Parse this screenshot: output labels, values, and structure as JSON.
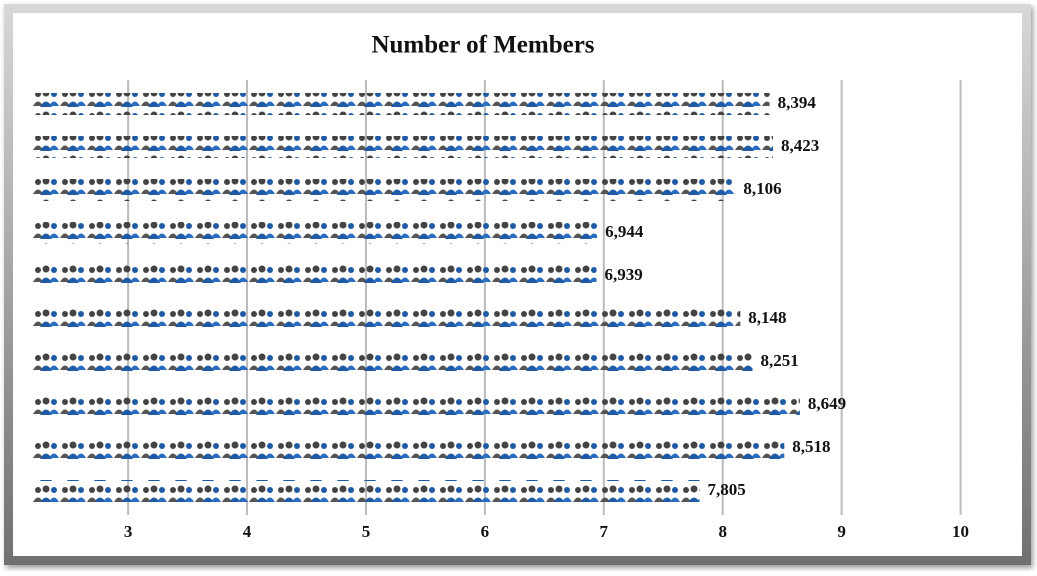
{
  "chart_data": {
    "type": "pictograph-bar",
    "title": "Number of Members",
    "values": [
      8.394,
      8.423,
      8.106,
      6.944,
      6.939,
      8.148,
      8.251,
      8.649,
      8.518,
      7.805
    ],
    "value_labels": [
      "8,394",
      "8,423",
      "8,106",
      "6,944",
      "6,939",
      "8,148",
      "8,251",
      "8,649",
      "8,518",
      "7,805"
    ],
    "color": "#1f5aa6",
    "xlim": [
      2.2,
      10.5
    ],
    "xticks": [
      3,
      4,
      5,
      6,
      7,
      8,
      9,
      10
    ],
    "grid": true
  }
}
